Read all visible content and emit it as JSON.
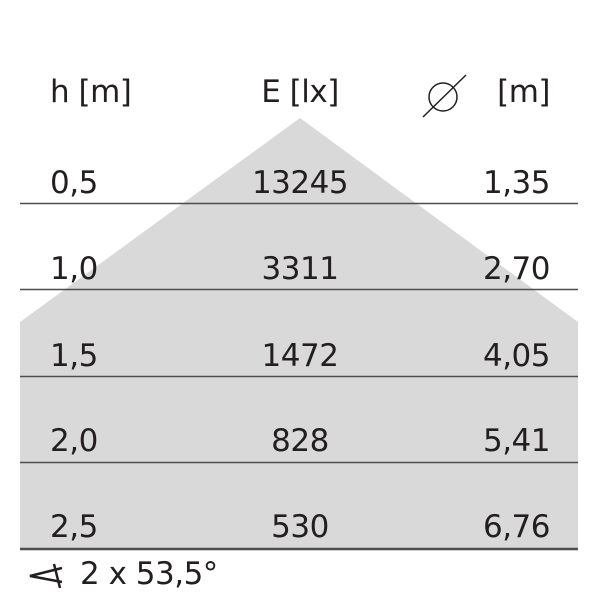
{
  "header": {
    "height": "h [m]",
    "illuminance": "E [lx]",
    "diameter_unit": "[m]",
    "diameter_icon": "diameter-icon"
  },
  "rows": [
    {
      "h": "0,5",
      "e": "13245",
      "d": "1,35"
    },
    {
      "h": "1,0",
      "e": "3311",
      "d": "2,70"
    },
    {
      "h": "1,5",
      "e": "1472",
      "d": "4,05"
    },
    {
      "h": "2,0",
      "e": "828",
      "d": "5,41"
    },
    {
      "h": "2,5",
      "e": "530",
      "d": "6,76"
    }
  ],
  "beam_angle": {
    "icon": "angle-icon",
    "text": "2 x 53,5°"
  },
  "colors": {
    "cone": "#d9d9d9",
    "text": "#231f20",
    "line": "#4d4d4d"
  }
}
